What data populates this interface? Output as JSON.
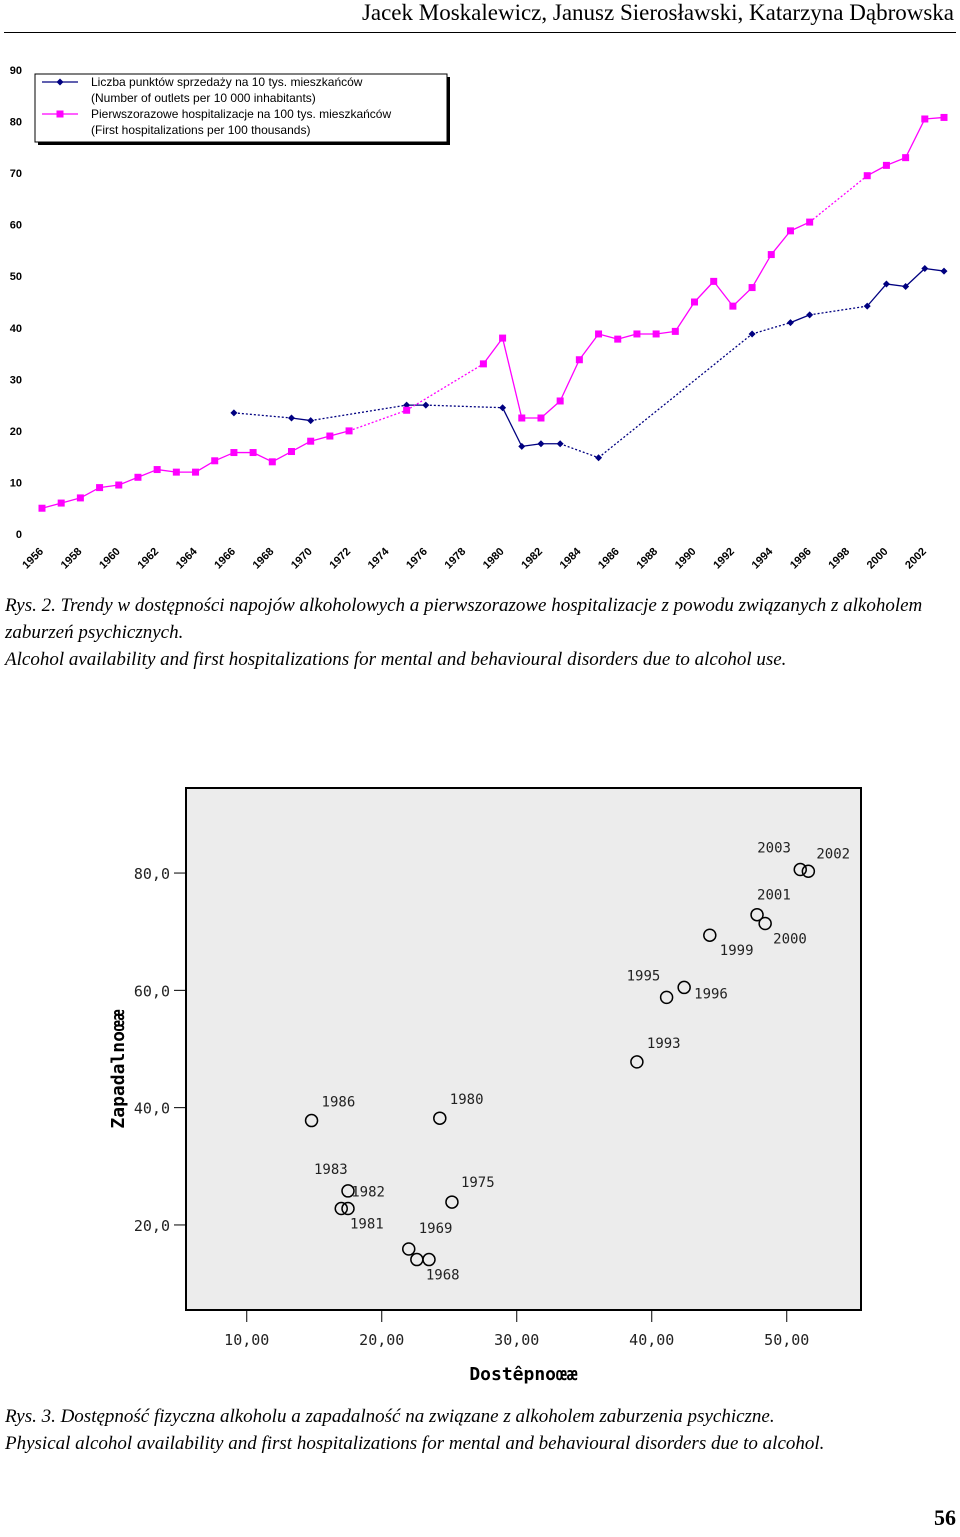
{
  "header": {
    "authors": "Jacek Moskalewicz, Janusz Sierosławski, Katarzyna Dąbrowska"
  },
  "page_number": "56",
  "figure2": {
    "caption_pl": "Rys. 2. Trendy w dostępności napojów alkoholowych a pierwszorazowe hospitalizacje z powodu związanych z alkoholem zaburzeń psychicznych.",
    "caption_en": "Alcohol availability and first hospitalizations for mental and behavioural disorders due to alcohol use."
  },
  "figure3": {
    "caption_pl": "Rys. 3. Dostępność fizyczna alkoholu a zapadalność na związane z alkoholem zaburzenia psychiczne.",
    "caption_en": "Physical alcohol availability and first hospitalizations for mental and behavioural disorders due to alcohol."
  },
  "chart_data": [
    {
      "type": "line",
      "title": "",
      "xlabel": "",
      "ylabel": "",
      "ylim": [
        0,
        90
      ],
      "yticks": [
        0,
        10,
        20,
        30,
        40,
        50,
        60,
        70,
        80,
        90
      ],
      "xlim": [
        1956,
        2003
      ],
      "xticks": [
        "1956",
        "1958",
        "1960",
        "1962",
        "1964",
        "1966",
        "1968",
        "1970",
        "1972",
        "1974",
        "1976",
        "1978",
        "1980",
        "1982",
        "1984",
        "1986",
        "1988",
        "1990",
        "1992",
        "1994",
        "1996",
        "1998",
        "2000",
        "2002"
      ],
      "legend_position": "top-left",
      "series": [
        {
          "name": "Liczba punktów sprzedaży na 10 tys. mieszkańców (Number of outlets per 10 000 inhabitants)",
          "legend_lines": [
            "Liczba punktów sprzedaży na 10 tys. mieszkańców",
            "(Number of outlets per 10 000 inhabitants)"
          ],
          "color": "#000080",
          "marker": "diamond",
          "points": [
            [
              1966,
              23.5
            ],
            [
              1969,
              22.5
            ],
            [
              1970,
              22.0
            ],
            [
              1975,
              25.0
            ],
            [
              1976,
              25.0
            ],
            [
              1980,
              24.5
            ],
            [
              1981,
              17.0
            ],
            [
              1982,
              17.5
            ],
            [
              1983,
              17.5
            ],
            [
              1985,
              14.8
            ],
            [
              1993,
              38.8
            ],
            [
              1995,
              41.0
            ],
            [
              1996,
              42.5
            ],
            [
              1999,
              44.2
            ],
            [
              2000,
              48.5
            ],
            [
              2001,
              48.0
            ],
            [
              2002,
              51.5
            ],
            [
              2003,
              51.0
            ]
          ]
        },
        {
          "name": "Pierwszorazowe hospitalizacje na 100 tys. mieszkańców (First hospitalizations per 100 thousands)",
          "legend_lines": [
            "Pierwszorazowe hospitalizacje na 100 tys. mieszkańców",
            "(First hospitalizations per 100 thousands)"
          ],
          "color": "#ff00ff",
          "marker": "square",
          "points": [
            [
              1956,
              5.0
            ],
            [
              1957,
              6.0
            ],
            [
              1958,
              7.0
            ],
            [
              1959,
              9.0
            ],
            [
              1960,
              9.5
            ],
            [
              1961,
              11.0
            ],
            [
              1962,
              12.5
            ],
            [
              1963,
              12.0
            ],
            [
              1964,
              12.0
            ],
            [
              1965,
              14.2
            ],
            [
              1966,
              15.8
            ],
            [
              1967,
              15.8
            ],
            [
              1968,
              14.0
            ],
            [
              1969,
              16.0
            ],
            [
              1970,
              18.0
            ],
            [
              1971,
              19.0
            ],
            [
              1972,
              20.0
            ],
            [
              1975,
              24.0
            ],
            [
              1979,
              33.0
            ],
            [
              1980,
              38.0
            ],
            [
              1981,
              22.5
            ],
            [
              1982,
              22.5
            ],
            [
              1983,
              25.8
            ],
            [
              1984,
              33.8
            ],
            [
              1985,
              38.8
            ],
            [
              1986,
              37.8
            ],
            [
              1987,
              38.8
            ],
            [
              1988,
              38.8
            ],
            [
              1989,
              39.3
            ],
            [
              1990,
              45.0
            ],
            [
              1991,
              49.0
            ],
            [
              1992,
              44.2
            ],
            [
              1993,
              47.8
            ],
            [
              1994,
              54.2
            ],
            [
              1995,
              58.8
            ],
            [
              1996,
              60.5
            ],
            [
              1999,
              69.5
            ],
            [
              2000,
              71.5
            ],
            [
              2001,
              73.0
            ],
            [
              2002,
              80.5
            ],
            [
              2003,
              80.8
            ]
          ]
        }
      ]
    },
    {
      "type": "scatter",
      "title": "",
      "xlabel": "Dostêpnoœæ",
      "ylabel": "Zapadalnoœæ",
      "xticks": [
        "10,00",
        "20,00",
        "30,00",
        "40,00",
        "50,00"
      ],
      "yticks": [
        "20,0",
        "40,0",
        "60,0",
        "80,0"
      ],
      "xlim": [
        5.5,
        55.5
      ],
      "ylim": [
        5.5,
        94.5
      ],
      "points": [
        {
          "x": 14.8,
          "y": 37.8,
          "label": "1986"
        },
        {
          "x": 24.3,
          "y": 38.2,
          "label": "1980"
        },
        {
          "x": 17.5,
          "y": 25.8,
          "label": "1983"
        },
        {
          "x": 17.0,
          "y": 22.8,
          "label": "1982"
        },
        {
          "x": 17.5,
          "y": 22.8,
          "label": "1981"
        },
        {
          "x": 25.2,
          "y": 23.9,
          "label": "1975"
        },
        {
          "x": 22.0,
          "y": 15.9,
          "label": "1969"
        },
        {
          "x": 22.6,
          "y": 14.1,
          "label": "1968"
        },
        {
          "x": 23.5,
          "y": 14.1,
          "label": ""
        },
        {
          "x": 38.9,
          "y": 47.8,
          "label": "1993"
        },
        {
          "x": 41.1,
          "y": 58.8,
          "label": "1995"
        },
        {
          "x": 42.4,
          "y": 60.5,
          "label": "1996"
        },
        {
          "x": 44.3,
          "y": 69.4,
          "label": "1999"
        },
        {
          "x": 47.8,
          "y": 72.9,
          "label": "2001"
        },
        {
          "x": 48.4,
          "y": 71.4,
          "label": "2000"
        },
        {
          "x": 51.0,
          "y": 80.6,
          "label": "2003"
        },
        {
          "x": 51.6,
          "y": 80.3,
          "label": "2002"
        }
      ]
    }
  ]
}
